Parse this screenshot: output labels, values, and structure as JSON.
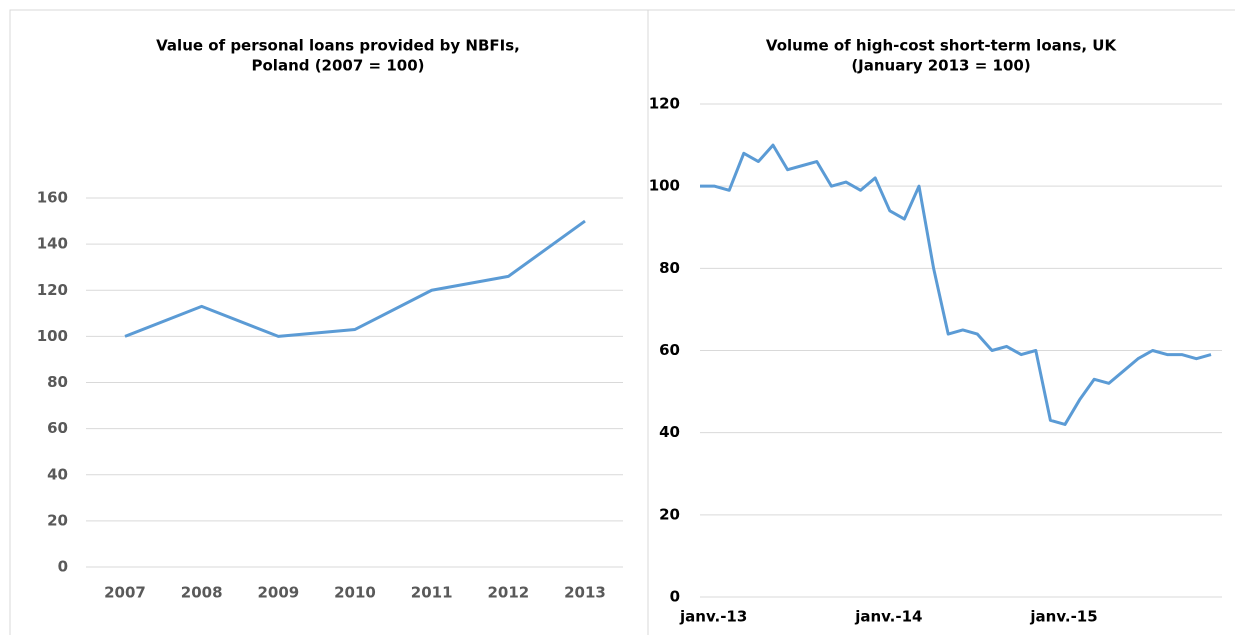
{
  "chart_data": [
    {
      "type": "line",
      "title": [
        "Value of personal loans provided by NBFIs,",
        "Poland (2007 = 100)"
      ],
      "categories": [
        "2007",
        "2008",
        "2009",
        "2010",
        "2011",
        "2012",
        "2013"
      ],
      "values": [
        100,
        113,
        100,
        103,
        120,
        126,
        150
      ],
      "color": "#5b9bd5",
      "ylim": [
        0,
        160
      ],
      "yticks": [
        0,
        20,
        40,
        60,
        80,
        100,
        120,
        140,
        160
      ],
      "grid": true
    },
    {
      "type": "line",
      "title": [
        "Volume of high-cost short-term loans, UK",
        "(January 2013 = 100)"
      ],
      "categories": [
        "janv.-13",
        null,
        null,
        null,
        null,
        null,
        null,
        null,
        null,
        null,
        null,
        null,
        "janv.-14",
        null,
        null,
        null,
        null,
        null,
        null,
        null,
        null,
        null,
        null,
        null,
        "janv.-15",
        null,
        null,
        null,
        null,
        null,
        null,
        null,
        null,
        null,
        null,
        null
      ],
      "values": [
        100,
        100,
        99,
        108,
        106,
        110,
        104,
        105,
        106,
        100,
        101,
        99,
        102,
        94,
        92,
        100,
        80,
        64,
        65,
        64,
        60,
        61,
        59,
        60,
        43,
        42,
        48,
        53,
        52,
        55,
        58,
        60,
        59,
        59,
        58,
        59
      ],
      "color": "#5b9bd5",
      "ylim": [
        0,
        120
      ],
      "yticks": [
        0,
        20,
        40,
        60,
        80,
        100,
        120
      ],
      "grid": true
    }
  ]
}
